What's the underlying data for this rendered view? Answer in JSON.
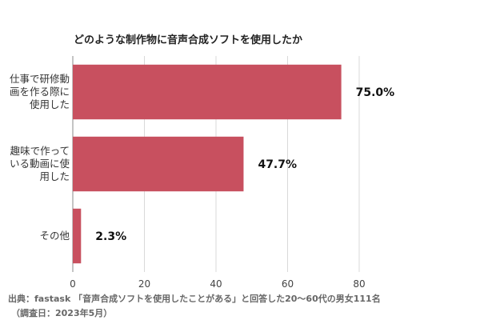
{
  "chart_data": {
    "type": "bar",
    "orientation": "horizontal",
    "title": "どのような制作物に音声合成ソフトを使用したか",
    "categories": [
      [
        "仕事で研修動",
        "画を作る際に",
        "使用した"
      ],
      [
        "趣味で作って",
        "いる動画に使",
        "用した"
      ],
      [
        "その他"
      ]
    ],
    "values": [
      75.0,
      47.7,
      2.3
    ],
    "value_labels": [
      "75.0%",
      "47.7%",
      "2.3%"
    ],
    "xlim": [
      0,
      80
    ],
    "xticks": [
      0,
      20,
      40,
      60,
      80
    ],
    "grid": true,
    "color": "#c8505f"
  },
  "footer": {
    "line1": "出典：fastask 「音声合成ソフトを使用したことがある」と回答した20〜60代の男女111名",
    "line2": "（調査日：2023年5月）"
  }
}
